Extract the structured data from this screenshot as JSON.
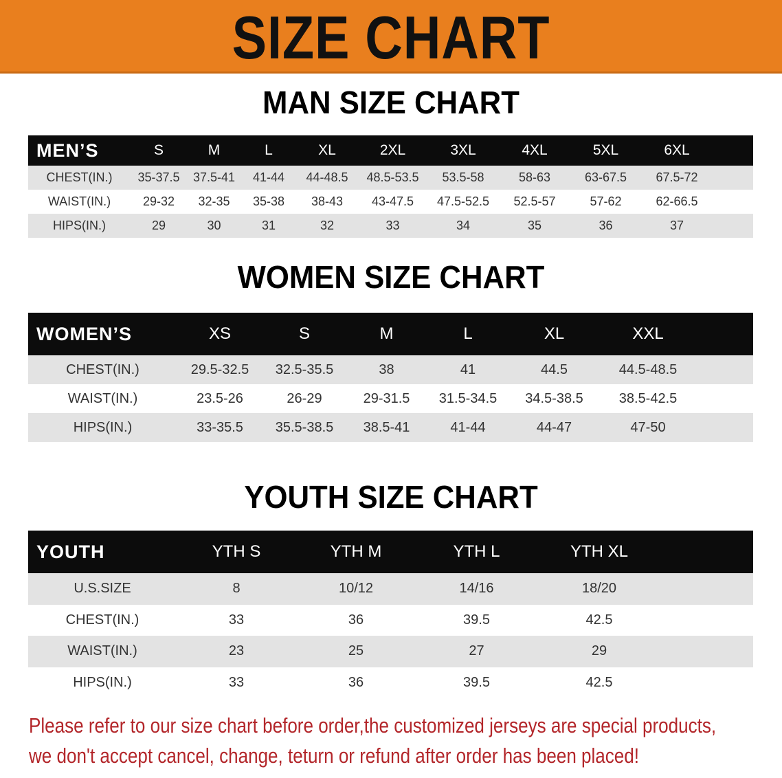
{
  "banner": {
    "title": "SIZE CHART",
    "color": "#e97f1e"
  },
  "men": {
    "title": "MAN SIZE CHART",
    "header": "MEN’S",
    "sizes": [
      "S",
      "M",
      "L",
      "XL",
      "2XL",
      "3XL",
      "4XL",
      "5XL",
      "6XL"
    ],
    "rows": [
      {
        "label": "CHEST(IN.)",
        "values": [
          "35-37.5",
          "37.5-41",
          "41-44",
          "44-48.5",
          "48.5-53.5",
          "53.5-58",
          "58-63",
          "63-67.5",
          "67.5-72"
        ]
      },
      {
        "label": "WAIST(IN.)",
        "values": [
          "29-32",
          "32-35",
          "35-38",
          "38-43",
          "43-47.5",
          "47.5-52.5",
          "52.5-57",
          "57-62",
          "62-66.5"
        ]
      },
      {
        "label": "HIPS(IN.)",
        "values": [
          "29",
          "30",
          "31",
          "32",
          "33",
          "34",
          "35",
          "36",
          "37"
        ]
      }
    ]
  },
  "women": {
    "title": "WOMEN SIZE CHART",
    "header": "WOMEN’S",
    "sizes": [
      "XS",
      "S",
      "M",
      "L",
      "XL",
      "XXL"
    ],
    "rows": [
      {
        "label": "CHEST(IN.)",
        "values": [
          "29.5-32.5",
          "32.5-35.5",
          "38",
          "41",
          "44.5",
          "44.5-48.5"
        ]
      },
      {
        "label": "WAIST(IN.)",
        "values": [
          "23.5-26",
          "26-29",
          "29-31.5",
          "31.5-34.5",
          "34.5-38.5",
          "38.5-42.5"
        ]
      },
      {
        "label": "HIPS(IN.)",
        "values": [
          "33-35.5",
          "35.5-38.5",
          "38.5-41",
          "41-44",
          "44-47",
          "47-50"
        ]
      }
    ]
  },
  "youth": {
    "title": "YOUTH SIZE CHART",
    "header": "YOUTH",
    "sizes": [
      "YTH S",
      "YTH M",
      "YTH L",
      "YTH XL"
    ],
    "rows": [
      {
        "label": "U.S.SIZE",
        "values": [
          "8",
          "10/12",
          "14/16",
          "18/20"
        ]
      },
      {
        "label": "CHEST(IN.)",
        "values": [
          "33",
          "36",
          "39.5",
          "42.5"
        ]
      },
      {
        "label": "WAIST(IN.)",
        "values": [
          "23",
          "25",
          "27",
          "29"
        ]
      },
      {
        "label": "HIPS(IN.)",
        "values": [
          "33",
          "36",
          "39.5",
          "42.5"
        ]
      }
    ]
  },
  "note": {
    "line1": "Please refer to our size chart before order,the customized jerseys are special products,",
    "line2": "we don't accept cancel, change, teturn or refund after order has been placed!",
    "color": "#b3262a"
  }
}
